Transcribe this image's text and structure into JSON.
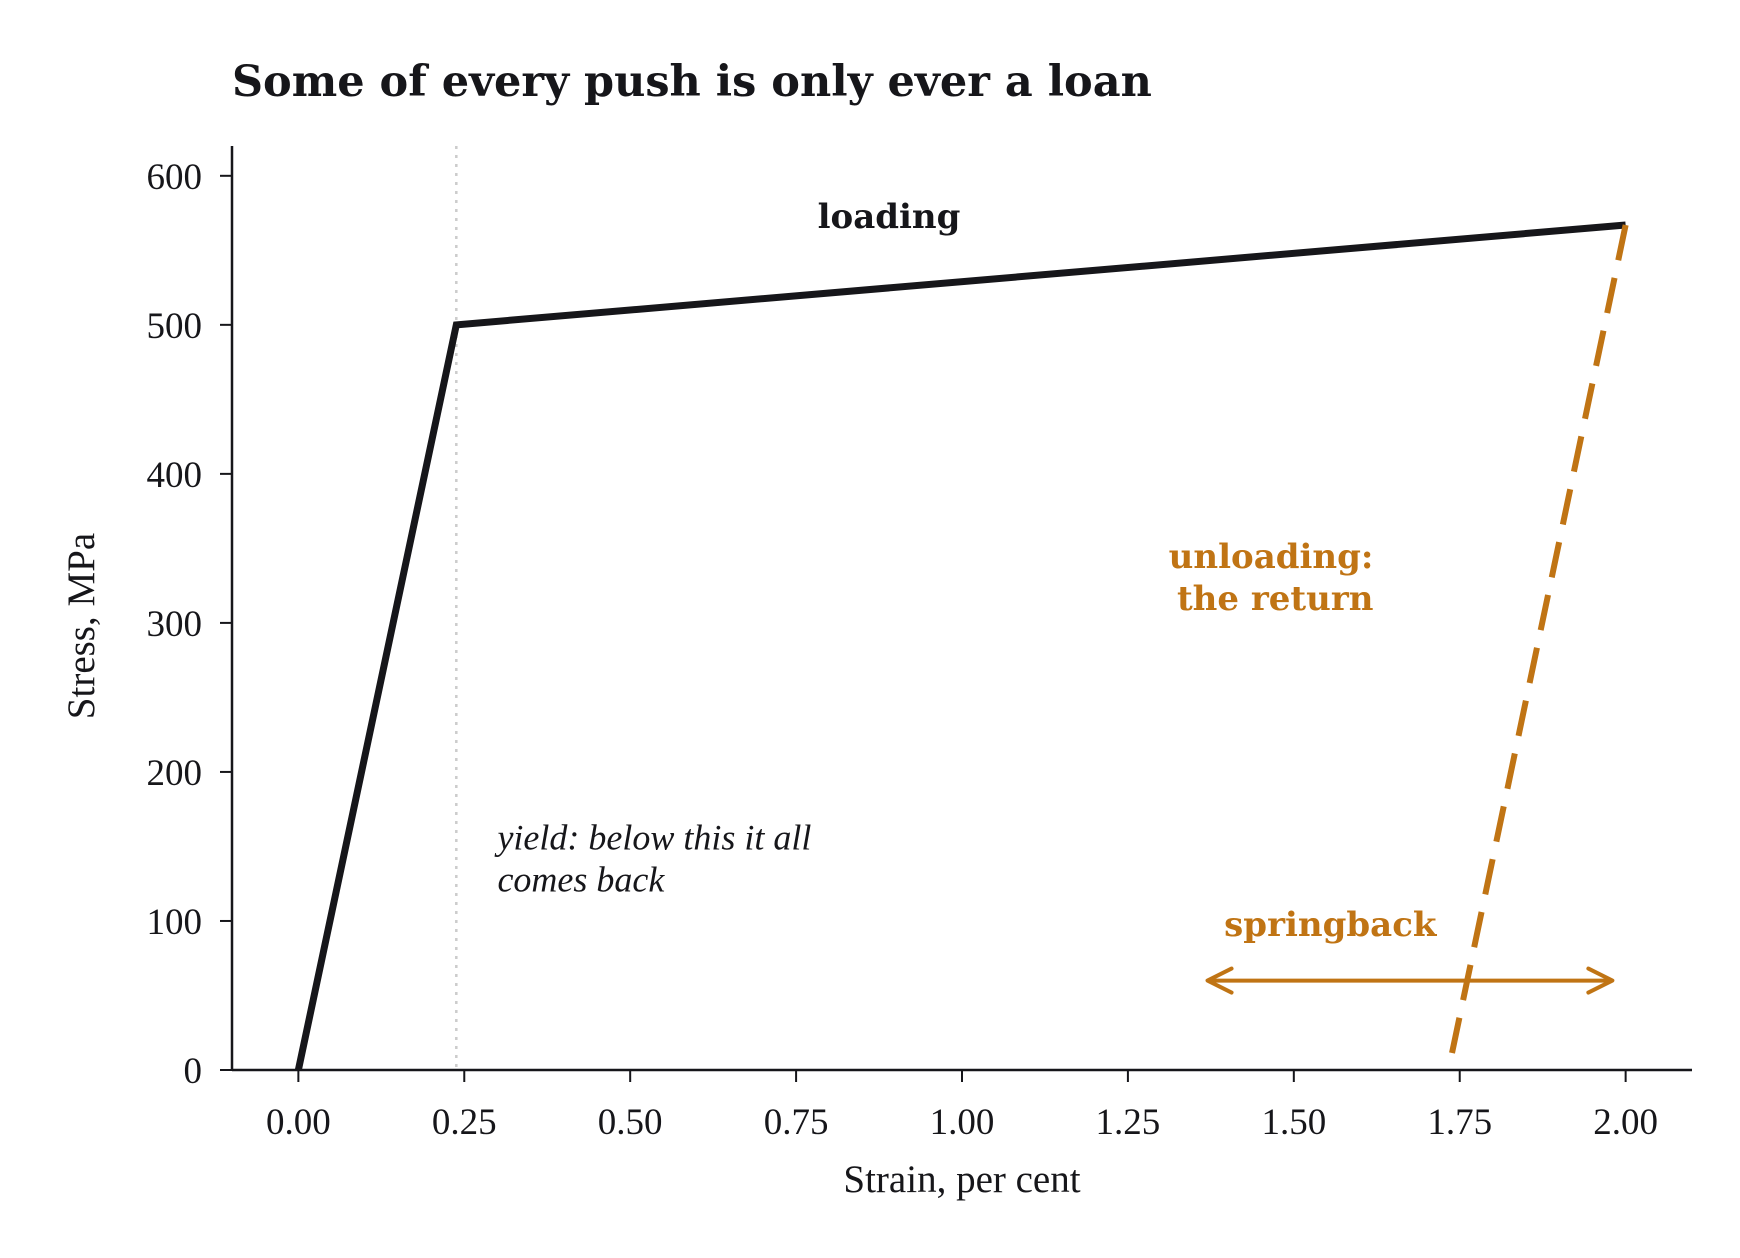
{
  "chart_data": {
    "type": "line",
    "title": "Some of every push is only ever a loan",
    "xlabel": "Strain, per cent",
    "ylabel": "Stress, MPa",
    "xlim": [
      -0.1,
      2.1
    ],
    "ylim": [
      0,
      620
    ],
    "xticks": [
      "0.00",
      "0.25",
      "0.50",
      "0.75",
      "1.00",
      "1.25",
      "1.50",
      "1.75",
      "2.00"
    ],
    "xtick_values": [
      0,
      0.25,
      0.5,
      0.75,
      1.0,
      1.25,
      1.5,
      1.75,
      2.0
    ],
    "yticks": [
      "0",
      "100",
      "200",
      "300",
      "400",
      "500",
      "600"
    ],
    "ytick_values": [
      0,
      100,
      200,
      300,
      400,
      500,
      600
    ],
    "grid": false,
    "series": [
      {
        "style": "solid",
        "color": "#16161a",
        "x": [
          0,
          0.238,
          2.0
        ],
        "y": [
          0,
          500,
          567
        ]
      },
      {
        "style": "dashed",
        "color": "#c07414",
        "x": [
          2.0,
          1.733
        ],
        "y": [
          567,
          0
        ]
      }
    ],
    "yield_line": {
      "x": 0.238,
      "style": "dotted",
      "color": "#cccccc"
    },
    "springback_arrow": {
      "x_start": 1.37,
      "x_end": 1.98,
      "y": 60,
      "color": "#c07414"
    },
    "annotations": [
      {
        "id": "loading",
        "lines": [
          "loading"
        ],
        "x": 0.89,
        "y": 565,
        "color": "#16161a",
        "style": "bold",
        "anchor": "middle"
      },
      {
        "id": "unloading",
        "lines": [
          "unloading:",
          "the return"
        ],
        "x": 1.62,
        "y": 337,
        "color": "#c07414",
        "style": "bold",
        "anchor": "end"
      },
      {
        "id": "springback",
        "lines": [
          "springback"
        ],
        "x": 1.555,
        "y": 90,
        "color": "#c07414",
        "style": "bold",
        "anchor": "middle"
      },
      {
        "id": "yield",
        "lines": [
          "yield: below this it all",
          "comes back"
        ],
        "x": 0.3,
        "y": 148,
        "color": "#16161a",
        "style": "italic",
        "anchor": "start"
      }
    ],
    "colors": {
      "ink": "#16161a",
      "accent": "#c07414",
      "yield": "#cccccc"
    }
  }
}
